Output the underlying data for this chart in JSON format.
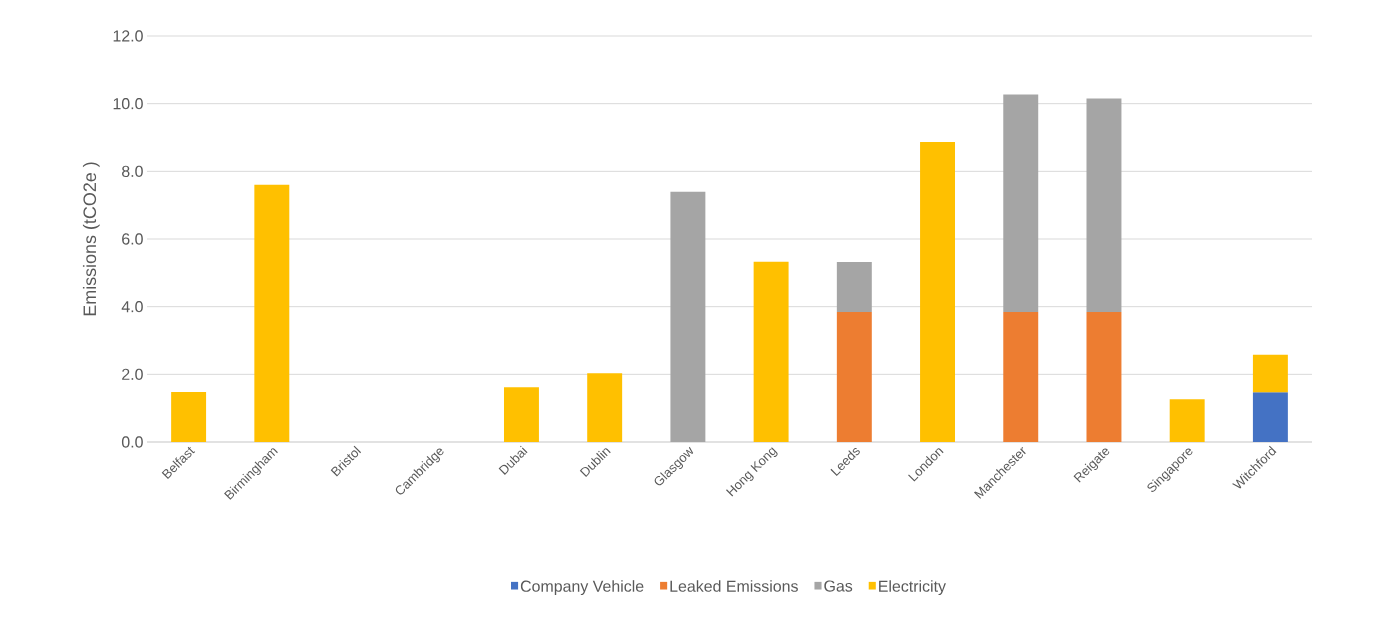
{
  "chart_data": {
    "type": "bar",
    "stacked": true,
    "ylabel": "Emissions (tCO2e )",
    "categories": [
      "Belfast",
      "Birmingham",
      "Bristol",
      "Cambridge",
      "Dubai",
      "Dublin",
      "Glasgow",
      "Hong Kong",
      "Leeds",
      "London",
      "Manchester",
      "Reigate",
      "Singapore",
      "Witchford"
    ],
    "series": [
      {
        "name": "Company Vehicle",
        "color": "#4472c4",
        "values": [
          null,
          null,
          null,
          null,
          null,
          null,
          null,
          null,
          null,
          null,
          null,
          null,
          null,
          1.47
        ]
      },
      {
        "name": "Leaked Emissions",
        "color": "#ed7d31",
        "values": [
          null,
          null,
          null,
          null,
          null,
          null,
          null,
          null,
          3.84,
          null,
          3.84,
          3.84,
          null,
          null
        ]
      },
      {
        "name": "Gas",
        "color": "#a5a5a5",
        "values": [
          null,
          null,
          null,
          null,
          null,
          null,
          7.4,
          null,
          1.48,
          null,
          6.43,
          6.31,
          null,
          null
        ]
      },
      {
        "name": "Electricity",
        "color": "#ffc000",
        "values": [
          1.48,
          7.6,
          null,
          null,
          1.62,
          2.03,
          null,
          5.33,
          null,
          8.87,
          null,
          null,
          1.26,
          1.11
        ]
      }
    ],
    "ylim": [
      0,
      12
    ],
    "yticks": [
      {
        "value": 0,
        "label": "0.0"
      },
      {
        "value": 2,
        "label": "2.0"
      },
      {
        "value": 4,
        "label": "4.0"
      },
      {
        "value": 6,
        "label": "6.0"
      },
      {
        "value": 8,
        "label": "8.0"
      },
      {
        "value": 10,
        "label": "10.0"
      },
      {
        "value": 12,
        "label": "12.0"
      }
    ],
    "grid": "y",
    "legend": "bottom"
  }
}
